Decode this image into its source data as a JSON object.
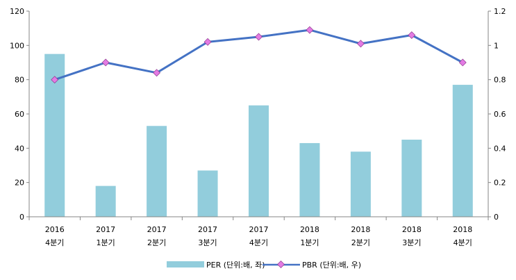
{
  "chart_data": {
    "type": "bar+line",
    "categories": [
      [
        "2016",
        "4분기"
      ],
      [
        "2017",
        "1분기"
      ],
      [
        "2017",
        "2분기"
      ],
      [
        "2017",
        "3분기"
      ],
      [
        "2017",
        "4분기"
      ],
      [
        "2018",
        "1분기"
      ],
      [
        "2018",
        "2분기"
      ],
      [
        "2018",
        "3분기"
      ],
      [
        "2018",
        "4분기"
      ]
    ],
    "series": [
      {
        "name": "PER (단위:배, 좌)",
        "type": "bar",
        "axis": "left",
        "color": "#92CDDC",
        "values": [
          95,
          18,
          53,
          27,
          65,
          43,
          38,
          45,
          77
        ]
      },
      {
        "name": "PBR (단위:배, 우)",
        "type": "line",
        "axis": "right",
        "color": "#4472C4",
        "marker_color": "#E37BE3",
        "values": [
          0.8,
          0.9,
          0.84,
          1.02,
          1.05,
          1.09,
          1.01,
          1.06,
          0.9
        ]
      }
    ],
    "y_left": {
      "min": 0,
      "max": 120,
      "ticks": [
        "0",
        "20",
        "40",
        "60",
        "80",
        "100",
        "120"
      ]
    },
    "y_right": {
      "min": 0,
      "max": 1.2,
      "ticks": [
        "0",
        "0.2",
        "0.4",
        "0.6",
        "0.8",
        "1",
        "1.2"
      ]
    },
    "grid": false,
    "legend_position": "bottom"
  }
}
